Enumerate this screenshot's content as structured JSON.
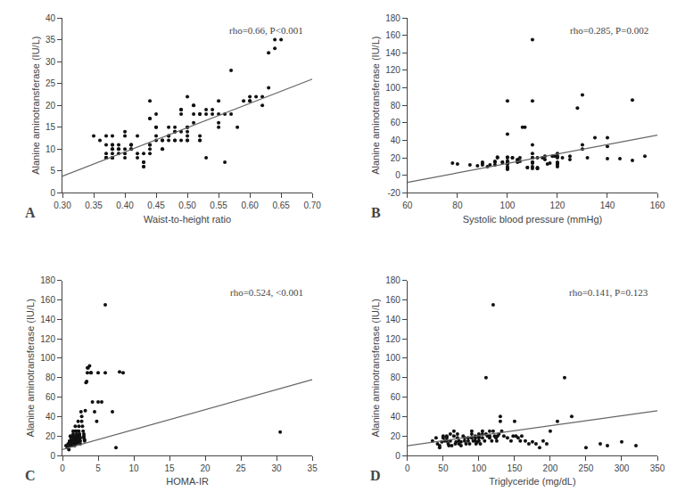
{
  "chart_data": [
    {
      "type": "scatter",
      "xlabel": "Waist-to-height ratio",
      "ylabel": "Alanine aminotransferase (IU/L)",
      "annotation": "rho=0.66, P<0.001",
      "label": "A",
      "xlim": [
        0.3,
        0.7
      ],
      "ylim": [
        0,
        40
      ],
      "xticks": [
        {
          "value": 0.3,
          "label": "0.30"
        },
        {
          "value": 0.35,
          "label": "0.35"
        },
        {
          "value": 0.4,
          "label": "0.40"
        },
        {
          "value": 0.45,
          "label": "0.45"
        },
        {
          "value": 0.5,
          "label": "0.50"
        },
        {
          "value": 0.55,
          "label": "0.55"
        },
        {
          "value": 0.6,
          "label": "0.60"
        },
        {
          "value": 0.65,
          "label": "0.65"
        },
        {
          "value": 0.7,
          "label": "0.70"
        }
      ],
      "yticks": [
        0,
        5,
        10,
        15,
        20,
        25,
        30,
        35,
        40
      ],
      "grid": false,
      "series": [
        {
          "type": "scatter",
          "color": "#111111",
          "x": [
            0.35,
            0.36,
            0.37,
            0.37,
            0.37,
            0.37,
            0.37,
            0.37,
            0.38,
            0.38,
            0.38,
            0.38,
            0.38,
            0.38,
            0.38,
            0.38,
            0.38,
            0.39,
            0.39,
            0.39,
            0.39,
            0.4,
            0.4,
            0.4,
            0.4,
            0.4,
            0.41,
            0.41,
            0.41,
            0.41,
            0.41,
            0.42,
            0.42,
            0.42,
            0.43,
            0.43,
            0.43,
            0.43,
            0.43,
            0.44,
            0.44,
            0.44,
            0.44,
            0.44,
            0.44,
            0.44,
            0.45,
            0.45,
            0.45,
            0.45,
            0.45,
            0.46,
            0.46,
            0.46,
            0.46,
            0.47,
            0.47,
            0.47,
            0.47,
            0.48,
            0.48,
            0.48,
            0.48,
            0.48,
            0.49,
            0.49,
            0.49,
            0.49,
            0.49,
            0.5,
            0.5,
            0.5,
            0.5,
            0.5,
            0.5,
            0.5,
            0.51,
            0.51,
            0.51,
            0.51,
            0.52,
            0.52,
            0.52,
            0.52,
            0.52,
            0.53,
            0.53,
            0.53,
            0.54,
            0.54,
            0.55,
            0.55,
            0.55,
            0.55,
            0.56,
            0.56,
            0.57,
            0.57,
            0.58,
            0.59,
            0.6,
            0.6,
            0.6,
            0.61,
            0.62,
            0.62,
            0.63,
            0.63,
            0.64,
            0.64,
            0.65
          ],
          "values": [
            13,
            12,
            8,
            8,
            8,
            11,
            13,
            9,
            10,
            10,
            11,
            11,
            13,
            8,
            8,
            9,
            8,
            11,
            10,
            9,
            10,
            9,
            10,
            8,
            13,
            14,
            10,
            10,
            11,
            11,
            11,
            13,
            8,
            9,
            7,
            7,
            6,
            6,
            9,
            17,
            17,
            11,
            10,
            9,
            11,
            21,
            18,
            13,
            12,
            15,
            15,
            12,
            10,
            12,
            10,
            13,
            15,
            12,
            13,
            15,
            14,
            14,
            12,
            12,
            12,
            14,
            19,
            19,
            18,
            12,
            13,
            14,
            22,
            12,
            15,
            15,
            20,
            16,
            20,
            18,
            12,
            13,
            18,
            18,
            12,
            18,
            8,
            19,
            18,
            19,
            18,
            16,
            15,
            21,
            7,
            18,
            18,
            28,
            15,
            21,
            21,
            21,
            22,
            22,
            20,
            22,
            24,
            32,
            33,
            35,
            35
          ]
        },
        {
          "type": "line",
          "color": "#666666",
          "x": [
            0.3,
            0.7
          ],
          "values": [
            3.8,
            26.0
          ]
        }
      ]
    },
    {
      "type": "scatter",
      "xlabel": "Systolic blood pressure (mmHg)",
      "ylabel": "Alanine aminotransferase (IU/L)",
      "annotation": "rho=0.285, P=0.002",
      "label": "B",
      "xlim": [
        60,
        160
      ],
      "ylim": [
        -20,
        180
      ],
      "xticks": [
        60,
        80,
        100,
        120,
        140,
        160
      ],
      "yticks": [
        -20,
        0,
        20,
        40,
        60,
        80,
        100,
        120,
        140,
        160,
        180
      ],
      "grid": false,
      "series": [
        {
          "type": "scatter",
          "color": "#111111",
          "x": [
            78,
            80,
            85,
            88,
            90,
            90,
            90,
            92,
            93,
            95,
            95,
            95,
            96,
            96,
            98,
            98,
            100,
            100,
            100,
            100,
            100,
            100,
            100,
            100,
            100,
            100,
            100,
            100,
            100,
            100,
            100,
            102,
            102,
            104,
            104,
            104,
            105,
            105,
            106,
            107,
            108,
            108,
            110,
            110,
            110,
            110,
            110,
            110,
            110,
            110,
            110,
            110,
            110,
            112,
            112,
            112,
            112,
            114,
            115,
            115,
            116,
            117,
            118,
            119,
            120,
            120,
            120,
            120,
            120,
            120,
            120,
            120,
            122,
            125,
            125,
            128,
            130,
            130,
            130,
            132,
            135,
            140,
            140,
            140,
            145,
            150,
            150,
            155
          ],
          "values": [
            14,
            13,
            12,
            11,
            12,
            15,
            14,
            10,
            12,
            16,
            15,
            12,
            21,
            20,
            15,
            15,
            21,
            20,
            15,
            14,
            14,
            13,
            10,
            8,
            8,
            7,
            16,
            16,
            15,
            47,
            85,
            20,
            20,
            18,
            17,
            15,
            20,
            16,
            55,
            55,
            9,
            9,
            155,
            85,
            35,
            25,
            20,
            20,
            15,
            15,
            14,
            10,
            8,
            9,
            8,
            8,
            20,
            20,
            18,
            22,
            13,
            14,
            22,
            22,
            25,
            22,
            20,
            15,
            14,
            14,
            12,
            10,
            20,
            22,
            18,
            77,
            92,
            35,
            30,
            20,
            43,
            43,
            33,
            19,
            19,
            86,
            17,
            22
          ]
        },
        {
          "type": "line",
          "color": "#666666",
          "x": [
            60,
            160
          ],
          "values": [
            -8,
            46
          ]
        }
      ]
    },
    {
      "type": "scatter",
      "xlabel": "HOMA-IR",
      "ylabel": "Alanine aminotransferase (IU/L)",
      "annotation": "rho=0.524, <0.001",
      "label": "C",
      "xlim": [
        0,
        35
      ],
      "ylim": [
        0,
        180
      ],
      "xticks": [
        0,
        5,
        10,
        15,
        20,
        25,
        30,
        35
      ],
      "yticks": [
        0,
        20,
        40,
        60,
        80,
        100,
        120,
        140,
        160,
        180
      ],
      "grid": false,
      "series": [
        {
          "type": "scatter",
          "color": "#111111",
          "x": [
            0.5,
            0.7,
            0.8,
            0.9,
            1.0,
            1.0,
            1.0,
            1.1,
            1.2,
            1.2,
            1.2,
            1.3,
            1.3,
            1.4,
            1.5,
            1.5,
            1.5,
            1.5,
            1.6,
            1.6,
            1.7,
            1.7,
            1.8,
            1.8,
            1.8,
            1.9,
            1.9,
            2.0,
            2.0,
            2.0,
            2.0,
            2.1,
            2.1,
            2.2,
            2.2,
            2.2,
            2.3,
            2.3,
            2.4,
            2.4,
            2.5,
            2.5,
            2.5,
            2.6,
            2.7,
            2.7,
            2.8,
            2.9,
            3.0,
            3.0,
            3.0,
            3.1,
            3.1,
            3.2,
            3.3,
            3.4,
            3.5,
            3.5,
            3.6,
            3.8,
            4.0,
            4.0,
            4.2,
            4.5,
            4.8,
            5.0,
            5.0,
            5.5,
            6.0,
            6.0,
            7.0,
            7.5,
            8.0,
            8.5,
            30.5
          ],
          "values": [
            10,
            8,
            12,
            6,
            15,
            14,
            10,
            20,
            18,
            15,
            12,
            10,
            13,
            20,
            25,
            22,
            18,
            15,
            16,
            14,
            12,
            10,
            30,
            25,
            20,
            18,
            15,
            14,
            12,
            25,
            22,
            20,
            18,
            16,
            14,
            35,
            30,
            25,
            22,
            20,
            18,
            15,
            12,
            45,
            40,
            35,
            30,
            25,
            22,
            20,
            18,
            16,
            15,
            46,
            75,
            76,
            85,
            90,
            90,
            92,
            85,
            85,
            55,
            45,
            35,
            55,
            85,
            55,
            85,
            155,
            45,
            8,
            86,
            85,
            24
          ]
        },
        {
          "type": "line",
          "color": "#666666",
          "x": [
            0,
            35
          ],
          "values": [
            6,
            78
          ]
        }
      ]
    },
    {
      "type": "scatter",
      "xlabel": "Triglyceride (mg/dL)",
      "ylabel": "Alanine aminotransferase (IU/L)",
      "annotation": "rho=0.141, P=0.123",
      "label": "D",
      "xlim": [
        0,
        350
      ],
      "ylim": [
        0,
        180
      ],
      "xticks": [
        0,
        50,
        100,
        150,
        200,
        250,
        300,
        350
      ],
      "yticks": [
        0,
        20,
        40,
        60,
        80,
        100,
        120,
        140,
        160,
        180
      ],
      "grid": false,
      "series": [
        {
          "type": "scatter",
          "color": "#111111",
          "x": [
            35,
            40,
            42,
            45,
            45,
            48,
            50,
            50,
            52,
            55,
            55,
            55,
            57,
            58,
            60,
            60,
            62,
            65,
            65,
            67,
            68,
            70,
            70,
            72,
            72,
            75,
            75,
            78,
            80,
            80,
            82,
            85,
            85,
            87,
            90,
            90,
            90,
            92,
            95,
            95,
            95,
            96,
            98,
            100,
            100,
            100,
            100,
            102,
            105,
            105,
            105,
            108,
            110,
            110,
            112,
            115,
            115,
            115,
            118,
            120,
            120,
            122,
            124,
            125,
            126,
            128,
            130,
            130,
            132,
            135,
            140,
            145,
            148,
            150,
            152,
            155,
            158,
            160,
            165,
            170,
            175,
            180,
            185,
            190,
            195,
            200,
            210,
            220,
            230,
            250,
            270,
            280,
            300,
            320
          ],
          "values": [
            15,
            18,
            12,
            10,
            8,
            14,
            20,
            18,
            15,
            20,
            18,
            15,
            12,
            10,
            22,
            15,
            10,
            25,
            20,
            12,
            14,
            22,
            18,
            15,
            12,
            10,
            14,
            20,
            18,
            15,
            12,
            15,
            18,
            12,
            25,
            22,
            18,
            15,
            20,
            18,
            15,
            12,
            14,
            22,
            20,
            18,
            15,
            12,
            25,
            22,
            18,
            15,
            80,
            22,
            20,
            25,
            20,
            18,
            15,
            155,
            25,
            20,
            18,
            15,
            20,
            22,
            40,
            35,
            25,
            20,
            18,
            15,
            20,
            35,
            20,
            18,
            15,
            20,
            15,
            12,
            14,
            12,
            8,
            15,
            12,
            25,
            35,
            80,
            40,
            8,
            12,
            10,
            14,
            10
          ]
        },
        {
          "type": "line",
          "color": "#666666",
          "x": [
            0,
            350
          ],
          "values": [
            10,
            46
          ]
        }
      ]
    }
  ]
}
